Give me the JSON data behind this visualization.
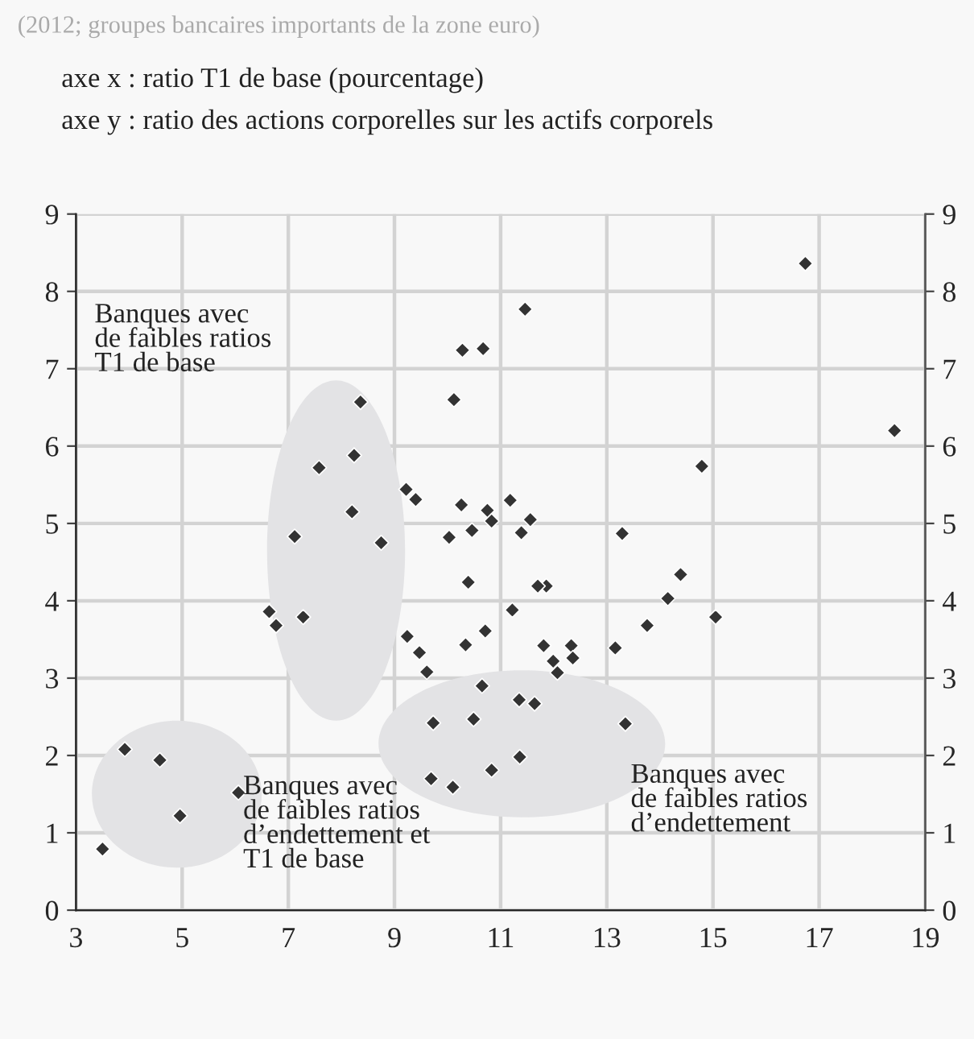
{
  "chart_data": {
    "type": "scatter",
    "subtitle": "(2012; groupes bancaires importants de la zone euro)",
    "annotations": [
      "axe x : ratio T1 de base (pourcentage)",
      "axe y : ratio des actions corporelles sur les actifs corporels",
      "Banques avec\nde faibles ratios\nT1 de base",
      "Banques avec\nde faibles ratios\nd’endettement et\nT1 de base",
      "Banques avec\nde faibles ratios\nd’endettement"
    ],
    "x": [
      11.46,
      10.28,
      10.67,
      8.36,
      10.12,
      7.58,
      8.24,
      9.22,
      9.4,
      8.2,
      10.26,
      10.75,
      10.83,
      11.18,
      11.56,
      11.39,
      7.12,
      8.75,
      10.03,
      10.46,
      16.74,
      18.42,
      14.79,
      13.29,
      6.64,
      6.77,
      7.28,
      10.39,
      11.22,
      9.24,
      9.47,
      9.61,
      10.34,
      10.71,
      10.65,
      9.73,
      10.49,
      9.69,
      10.1,
      10.83,
      11.36,
      3.92,
      4.58,
      4.96,
      6.06,
      3.5,
      11.86,
      11.7,
      11.81,
      12.33,
      12.36,
      11.99,
      12.07,
      13.16,
      13.76,
      14.15,
      14.39,
      15.05,
      11.35,
      11.64,
      13.35
    ],
    "series": [
      {
        "color": "#333333",
        "values": [
          7.77,
          7.24,
          7.26,
          6.57,
          6.6,
          5.72,
          5.88,
          5.44,
          5.31,
          5.15,
          5.24,
          5.17,
          5.03,
          5.3,
          5.05,
          4.88,
          4.83,
          4.75,
          4.82,
          4.91,
          8.36,
          6.2,
          5.74,
          4.87,
          3.86,
          3.68,
          3.79,
          4.24,
          3.88,
          3.54,
          3.33,
          3.08,
          3.43,
          3.61,
          2.9,
          2.42,
          2.47,
          1.7,
          1.59,
          1.81,
          1.98,
          2.08,
          1.94,
          1.22,
          1.52,
          0.79,
          4.19,
          4.19,
          3.42,
          3.42,
          3.26,
          3.22,
          3.07,
          3.39,
          3.68,
          4.03,
          4.34,
          3.79,
          2.72,
          2.67,
          2.41
        ]
      }
    ],
    "xlim": [
      3,
      19
    ],
    "xticks": [
      3,
      5,
      7,
      9,
      11,
      13,
      15,
      17,
      19
    ],
    "ylim": [
      0,
      9
    ],
    "yticks": [
      0,
      1,
      2,
      3,
      4,
      5,
      6,
      7,
      8,
      9
    ],
    "y2lim": [
      0,
      9
    ],
    "y2ticks": [
      0,
      1,
      2,
      3,
      4,
      5,
      6,
      7,
      8,
      9
    ],
    "grid": true,
    "marker": "diamond"
  }
}
